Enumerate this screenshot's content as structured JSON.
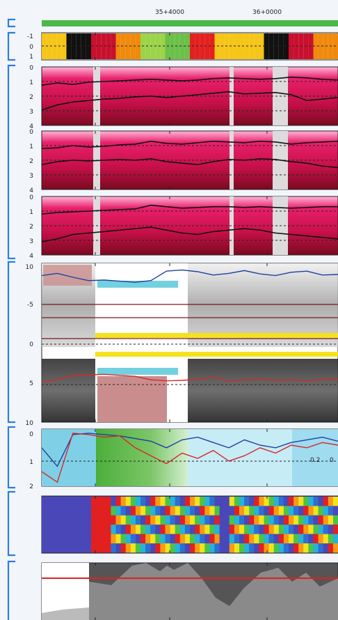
{
  "chart_data": [
    {
      "type": "line",
      "name": "station-axis",
      "tick_labels": [
        "35+4000",
        "36+0000"
      ],
      "bar_color": "#4cb848"
    },
    {
      "type": "heatmap",
      "name": "quality-strip",
      "ytick_labels": [
        "-1",
        "0",
        "1"
      ]
    },
    {
      "type": "heatmap",
      "name": "radar-depth-1",
      "ytick_labels": [
        "0",
        "1",
        "2",
        "3",
        "4"
      ],
      "series": [
        {
          "values": [
            1.25,
            1.1,
            1.2,
            1.05,
            1.0,
            0.95,
            0.9,
            0.85,
            0.9,
            0.95,
            0.9,
            0.8,
            0.75,
            0.8,
            0.85,
            0.8,
            0.7,
            0.75,
            0.85,
            0.9
          ]
        },
        {
          "values": [
            2.95,
            2.6,
            2.4,
            2.3,
            2.2,
            2.15,
            2.05,
            2.0,
            2.1,
            2.0,
            1.9,
            1.8,
            1.7,
            1.85,
            1.8,
            1.75,
            1.9,
            2.3,
            2.2,
            2.1
          ]
        }
      ]
    },
    {
      "type": "heatmap",
      "name": "radar-depth-2",
      "ytick_labels": [
        "0",
        "1",
        "2",
        "3",
        "4"
      ],
      "series": [
        {
          "values": [
            1.2,
            1.15,
            1.0,
            1.1,
            1.05,
            0.95,
            0.9,
            0.7,
            0.85,
            0.9,
            0.8,
            0.7,
            0.75,
            0.8,
            0.7,
            0.75,
            0.9,
            0.8,
            0.75,
            0.7
          ]
        },
        {
          "values": [
            2.3,
            2.1,
            2.0,
            2.05,
            2.0,
            1.95,
            2.0,
            1.9,
            2.1,
            2.2,
            2.3,
            2.1,
            1.95,
            2.0,
            1.9,
            1.95,
            2.1,
            2.2,
            2.4,
            2.5
          ]
        }
      ]
    },
    {
      "type": "heatmap",
      "name": "radar-depth-3",
      "ytick_labels": [
        "0",
        "1",
        "2",
        "3",
        "4"
      ],
      "series": [
        {
          "values": [
            1.2,
            1.1,
            1.05,
            1.0,
            0.95,
            0.9,
            0.85,
            0.6,
            0.7,
            0.8,
            0.75,
            0.7,
            0.7,
            0.75,
            0.7,
            0.75,
            0.8,
            0.75,
            0.7,
            0.7
          ]
        },
        {
          "values": [
            3.1,
            2.9,
            2.6,
            2.5,
            2.4,
            2.3,
            2.2,
            2.1,
            2.3,
            2.5,
            2.6,
            2.4,
            2.3,
            2.2,
            2.3,
            2.5,
            2.6,
            2.7,
            2.8,
            2.9
          ]
        }
      ]
    },
    {
      "type": "area",
      "name": "profile-elevation",
      "ytick_labels": [
        "10",
        "-5",
        "0",
        "5",
        "10"
      ],
      "series": [
        {
          "color": "#1f3fa0",
          "values": [
            7.8,
            8.2,
            7.5,
            6.9,
            7.0,
            6.8,
            6.6,
            6.9,
            8.6,
            8.8,
            8.5,
            7.9,
            8.2,
            8.7,
            8.1,
            7.8,
            8.4,
            8.6,
            7.9,
            8.0
          ]
        },
        {
          "color": "#d62828",
          "values": [
            5.5,
            5.8,
            6.6,
            6.8,
            6.9,
            6.7,
            6.5,
            5.8,
            5.6,
            5.7,
            5.9,
            6.3,
            5.5,
            5.8,
            5.9,
            5.7,
            5.8,
            5.6,
            5.9,
            5.8
          ]
        }
      ]
    },
    {
      "type": "area",
      "name": "moisture-index",
      "ytick_labels": [
        "0",
        "1",
        "2"
      ],
      "annotations": [
        "0.2",
        "0"
      ],
      "series": [
        {
          "color": "#1f3fa0",
          "values": [
            0.6,
            1.3,
            0.1,
            0.05,
            0.1,
            0.15,
            0.25,
            0.35,
            0.6,
            0.3,
            0.2,
            0.4,
            0.6,
            0.3,
            0.5,
            0.6,
            0.4,
            0.3,
            0.2,
            0.35
          ]
        },
        {
          "color": "#d62828",
          "values": [
            1.5,
            1.9,
            0.05,
            0.1,
            0.2,
            0.15,
            0.6,
            0.9,
            1.2,
            0.8,
            1.0,
            0.7,
            1.1,
            0.9,
            0.6,
            0.8,
            0.5,
            0.6,
            0.4,
            0.5
          ]
        }
      ]
    },
    {
      "type": "heatmap",
      "name": "spectral-strip"
    },
    {
      "type": "area",
      "name": "ground-profile",
      "threshold_color": "#e02020"
    }
  ]
}
